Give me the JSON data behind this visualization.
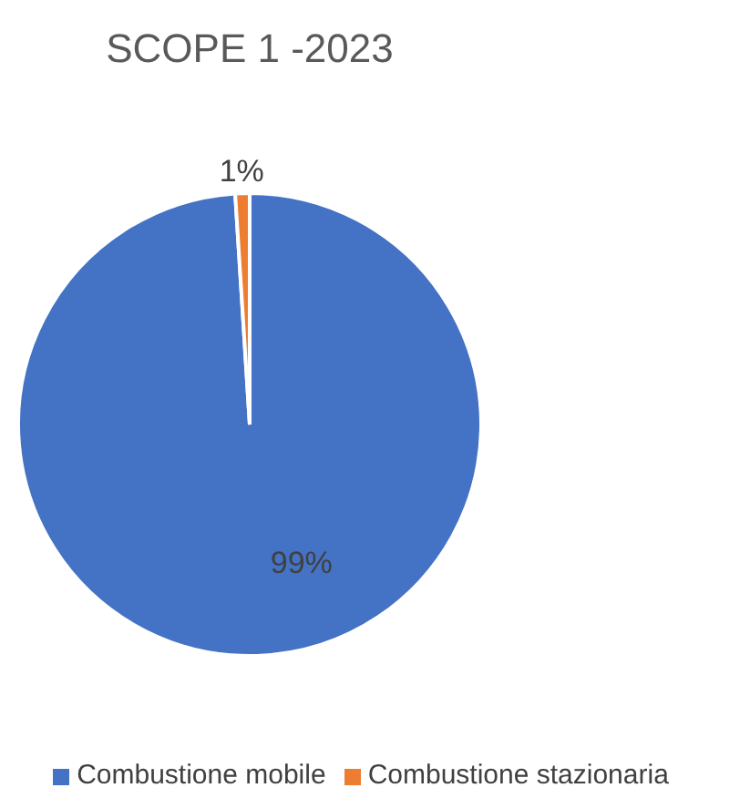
{
  "chart_data": {
    "type": "pie",
    "title": "SCOPE 1 -2023",
    "categories": [
      "Combustione mobile",
      "Combustione stazionaria"
    ],
    "values": [
      99,
      1
    ],
    "colors": [
      "#4472c4",
      "#ed7d31"
    ],
    "value_labels": [
      "99%",
      "1%"
    ],
    "legend": "bottom"
  }
}
